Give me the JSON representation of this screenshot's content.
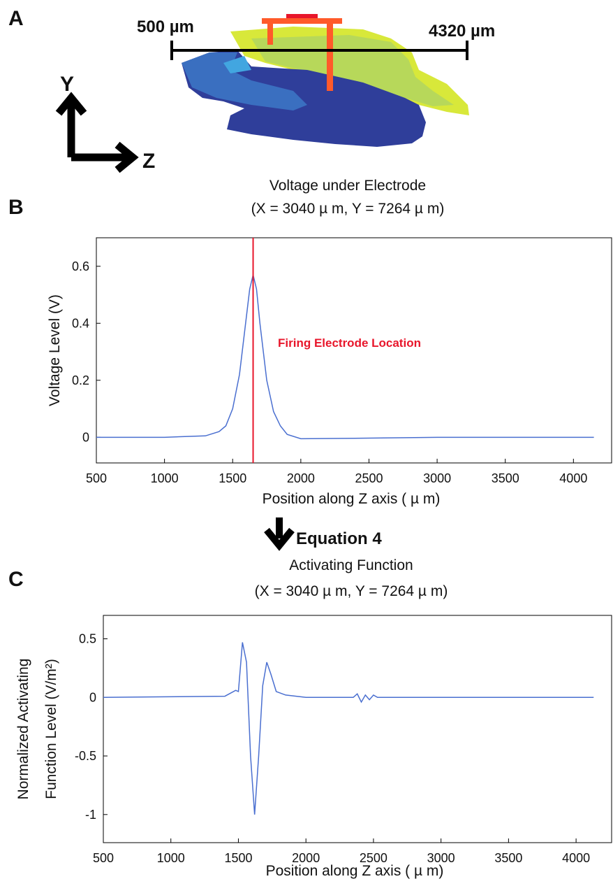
{
  "panel_a": {
    "label": "A",
    "scale_left": "500 µm",
    "scale_right": "4320 µm",
    "axis_y": "Y",
    "axis_z": "Z"
  },
  "arrow_label": "Equation 4",
  "chart_data": [
    {
      "type": "line",
      "panel": "B",
      "title": "Voltage under Electrode",
      "subtitle": "(X = 3040  µ m, Y = 7264  µ m)",
      "xlabel": "Position along Z axis (  µ m)",
      "ylabel": [
        "Voltage Level (V)"
      ],
      "x": [
        500,
        1000,
        1300,
        1400,
        1450,
        1500,
        1550,
        1600,
        1625,
        1650,
        1675,
        1700,
        1750,
        1800,
        1850,
        1900,
        2000,
        2500,
        3000,
        3500,
        4150
      ],
      "series": [
        {
          "color": "#4a6fd0",
          "values": [
            0,
            0,
            0.005,
            0.02,
            0.04,
            0.1,
            0.22,
            0.42,
            0.52,
            0.57,
            0.52,
            0.4,
            0.2,
            0.09,
            0.04,
            0.01,
            -0.005,
            -0.003,
            0,
            0,
            0
          ]
        }
      ],
      "xlim": [
        500,
        4280
      ],
      "ylim": [
        -0.09,
        0.7
      ],
      "xticks": [
        500,
        1000,
        1500,
        2000,
        2500,
        3000,
        3500,
        4000
      ],
      "yticks": [
        0,
        0.2,
        0.4,
        0.6
      ],
      "marker_x": 1650,
      "marker_color": "#e8162b",
      "annotation": "Firing Electrode Location"
    },
    {
      "type": "line",
      "panel": "C",
      "title": "Activating Function",
      "subtitle": "(X = 3040  µ m, Y = 7264  µ m)",
      "xlabel": "Position along Z axis (  µ m)",
      "ylabel": [
        "Normalized Activating",
        "Function Level (V/m²)"
      ],
      "x": [
        500,
        1400,
        1480,
        1500,
        1530,
        1560,
        1590,
        1620,
        1650,
        1680,
        1710,
        1740,
        1780,
        1850,
        2000,
        2350,
        2380,
        2410,
        2440,
        2470,
        2500,
        2530,
        4130
      ],
      "series": [
        {
          "color": "#4a6fd0",
          "values": [
            0,
            0.01,
            0.06,
            0.05,
            0.47,
            0.3,
            -0.5,
            -1.0,
            -0.5,
            0.1,
            0.3,
            0.2,
            0.05,
            0.02,
            0,
            0,
            0.03,
            -0.04,
            0.02,
            -0.02,
            0.02,
            0,
            0
          ]
        }
      ],
      "xlim": [
        500,
        4263
      ],
      "ylim": [
        -1.24,
        0.7
      ],
      "xticks": [
        500,
        1000,
        1500,
        2000,
        2500,
        3000,
        3500,
        4000
      ],
      "yticks": [
        -1,
        -0.5,
        0,
        0.5
      ]
    }
  ]
}
